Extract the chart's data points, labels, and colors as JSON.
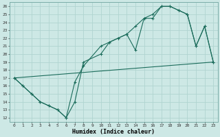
{
  "xlabel": "Humidex (Indice chaleur)",
  "bg_color": "#cde8e5",
  "grid_color": "#b0d4d0",
  "line_color": "#1a6b5a",
  "xlim": [
    -0.5,
    23.5
  ],
  "ylim": [
    11.5,
    26.5
  ],
  "xticks": [
    0,
    1,
    2,
    3,
    4,
    5,
    6,
    7,
    8,
    9,
    10,
    11,
    12,
    13,
    14,
    15,
    16,
    17,
    18,
    19,
    20,
    21,
    22,
    23
  ],
  "yticks": [
    12,
    13,
    14,
    15,
    16,
    17,
    18,
    19,
    20,
    21,
    22,
    23,
    24,
    25,
    26
  ],
  "line1": {
    "x": [
      0,
      1,
      2,
      3,
      4,
      5,
      6,
      7,
      8,
      10,
      11,
      12,
      13,
      14,
      15,
      16,
      17,
      18,
      19,
      20,
      21,
      22,
      23
    ],
    "y": [
      17,
      16,
      15,
      14,
      13.5,
      13,
      12,
      16.5,
      18.5,
      21,
      21.5,
      22,
      22.5,
      20.5,
      24.5,
      24.5,
      26,
      26,
      25.5,
      25,
      21,
      23.5,
      19
    ]
  },
  "line2": {
    "x": [
      0,
      1,
      2,
      3,
      4,
      5,
      6,
      7,
      8,
      10,
      11,
      12,
      13,
      14,
      15,
      16,
      17,
      18,
      19,
      20,
      21,
      22,
      23
    ],
    "y": [
      17,
      16,
      15,
      14,
      13.5,
      13,
      12,
      14,
      19,
      20,
      21.5,
      22,
      22.5,
      23.5,
      24.5,
      25,
      26,
      26,
      25.5,
      25,
      21,
      23.5,
      19
    ]
  },
  "line3": {
    "x": [
      0,
      23
    ],
    "y": [
      17,
      19
    ]
  }
}
